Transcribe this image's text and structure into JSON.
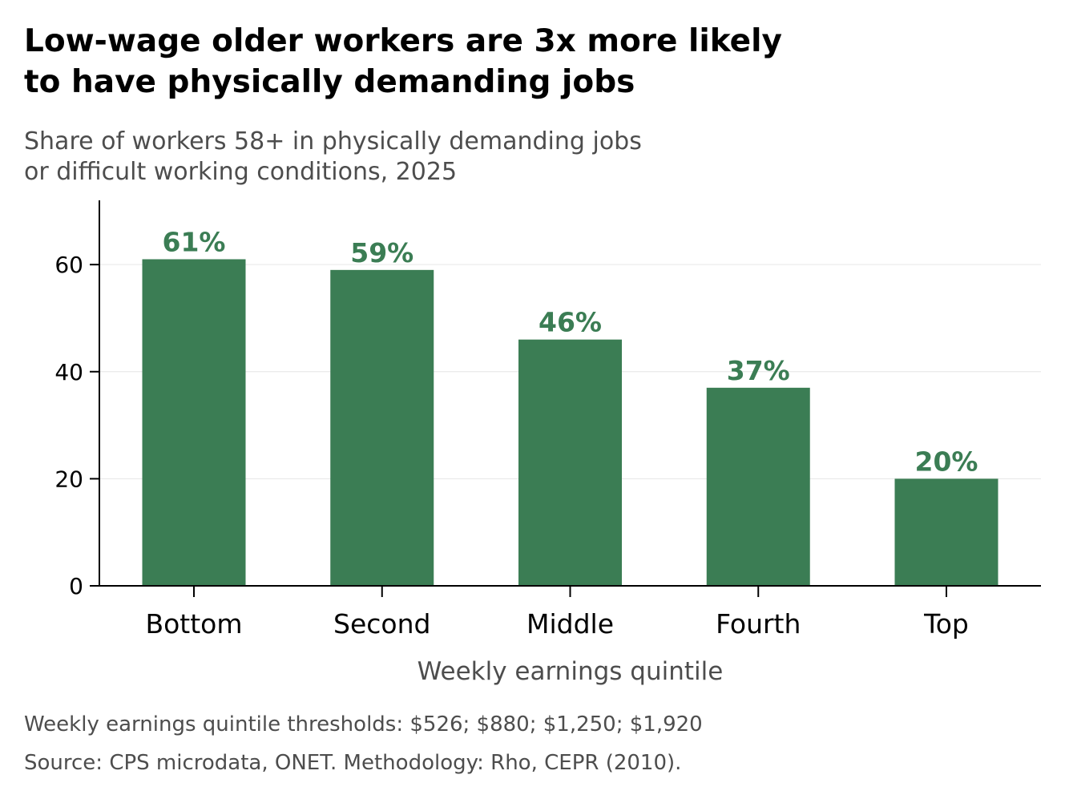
{
  "title_lines": [
    "Low-wage older workers are 3x more likely",
    "to have physically demanding jobs"
  ],
  "subtitle_lines": [
    "Share of workers 58+ in physically demanding jobs",
    "or difficult working conditions, 2025"
  ],
  "caption_lines": [
    "Weekly earnings quintile thresholds: $526; $880; $1,250; $1,920",
    "Source: CPS microdata, ONET. Methodology: Rho, CEPR (2010)."
  ],
  "colors": {
    "bar": "#3b7d54",
    "label": "#3b7d54",
    "grid": "#e6e6e6",
    "axis": "#000000",
    "muted_text": "#4d4d4d"
  },
  "chart_data": {
    "type": "bar",
    "categories": [
      "Bottom",
      "Second",
      "Middle",
      "Fourth",
      "Top"
    ],
    "values": [
      61,
      59,
      46,
      37,
      20
    ],
    "data_labels": [
      "61%",
      "59%",
      "46%",
      "37%",
      "20%"
    ],
    "xlabel": "Weekly earnings quintile",
    "ylabel": "",
    "ylim": [
      0,
      72
    ],
    "yticks": [
      0,
      20,
      40,
      60
    ],
    "grid": "horizontal",
    "legend": "none"
  }
}
